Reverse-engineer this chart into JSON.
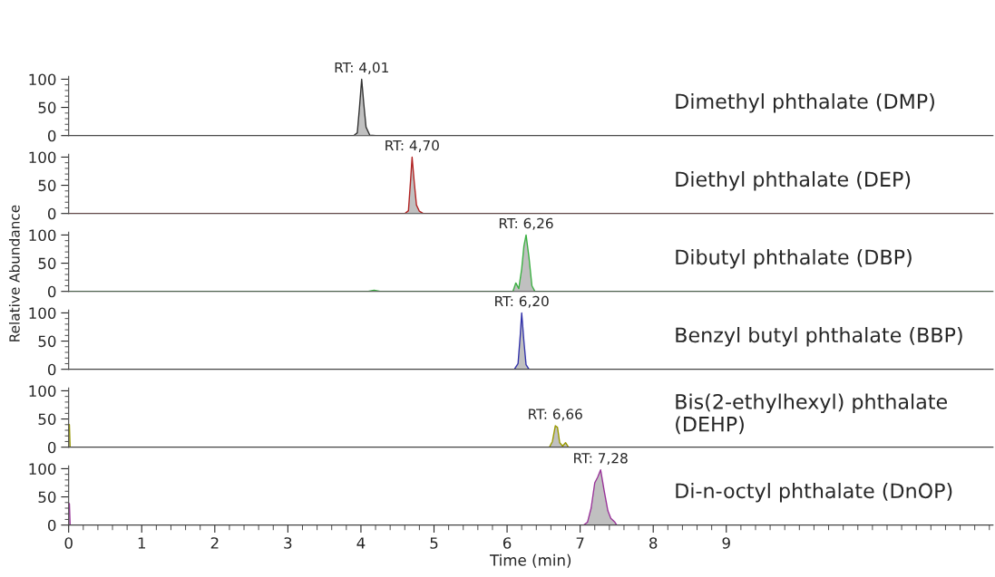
{
  "chart_data": [
    {
      "type": "area",
      "ylim": [
        0,
        105
      ],
      "yticks": [
        0,
        50,
        100
      ],
      "xlim": [
        0,
        12.65
      ],
      "xticks": [
        0,
        1,
        2,
        3,
        4,
        5,
        6,
        7,
        8,
        9
      ],
      "tick_labels": "y",
      "annotations": [
        "Dimethyl phthalate (DMP)",
        {
          "text": "RT: 4,01",
          "x": 4.01,
          "y": 100
        }
      ],
      "series": [
        {
          "color": "#333333",
          "x": [
            0,
            3.9,
            3.95,
            3.98,
            4.01,
            4.04,
            4.07,
            4.12,
            4.2,
            12.65
          ],
          "values": [
            0,
            0,
            5,
            50,
            100,
            55,
            15,
            1,
            0,
            0
          ]
        }
      ]
    },
    {
      "type": "area",
      "ylim": [
        0,
        105
      ],
      "yticks": [
        0,
        50,
        100
      ],
      "xlim": [
        0,
        12.65
      ],
      "xticks": [
        0,
        1,
        2,
        3,
        4,
        5,
        6,
        7,
        8,
        9
      ],
      "tick_labels": "y",
      "annotations": [
        "Diethyl phthalate (DEP)",
        {
          "text": "RT: 4,70",
          "x": 4.7,
          "y": 100
        }
      ],
      "series": [
        {
          "color": "#b22222",
          "x": [
            0,
            4.6,
            4.65,
            4.68,
            4.7,
            4.73,
            4.76,
            4.8,
            4.85,
            12.65
          ],
          "values": [
            0,
            0,
            5,
            60,
            100,
            55,
            15,
            4,
            0,
            0
          ]
        }
      ]
    },
    {
      "type": "area",
      "ylim": [
        0,
        105
      ],
      "yticks": [
        0,
        50,
        100
      ],
      "xlim": [
        0,
        12.65
      ],
      "xticks": [
        0,
        1,
        2,
        3,
        4,
        5,
        6,
        7,
        8,
        9
      ],
      "tick_labels": "y",
      "ylabel": "Relative Abundance",
      "annotations": [
        "Dibutyl phthalate (DBP)",
        {
          "text": "RT: 6,26",
          "x": 6.26,
          "y": 100
        }
      ],
      "series": [
        {
          "color": "#3cb043",
          "x": [
            0,
            4.1,
            4.18,
            4.26,
            6.08,
            6.12,
            6.16,
            6.2,
            6.23,
            6.26,
            6.3,
            6.34,
            6.38,
            12.65
          ],
          "values": [
            0,
            0,
            2,
            0,
            0,
            15,
            5,
            40,
            80,
            100,
            60,
            10,
            0,
            0
          ]
        }
      ]
    },
    {
      "type": "area",
      "ylim": [
        0,
        105
      ],
      "yticks": [
        0,
        50,
        100
      ],
      "xlim": [
        0,
        12.65
      ],
      "xticks": [
        0,
        1,
        2,
        3,
        4,
        5,
        6,
        7,
        8,
        9
      ],
      "tick_labels": "y",
      "annotations": [
        "Benzyl butyl phthalate (BBP)",
        {
          "text": "RT: 6,20",
          "x": 6.2,
          "y": 100
        }
      ],
      "series": [
        {
          "color": "#3333aa",
          "x": [
            0,
            6.1,
            6.15,
            6.18,
            6.2,
            6.23,
            6.26,
            6.3,
            12.65
          ],
          "values": [
            0,
            0,
            10,
            60,
            100,
            50,
            8,
            0,
            0
          ]
        }
      ]
    },
    {
      "type": "area",
      "ylim": [
        0,
        105
      ],
      "yticks": [
        0,
        50,
        100
      ],
      "xlim": [
        0,
        12.65
      ],
      "xticks": [
        0,
        1,
        2,
        3,
        4,
        5,
        6,
        7,
        8,
        9
      ],
      "tick_labels": "y",
      "annotations": [
        "Bis(2-ethylhexyl) phthalate\n(DEHP)",
        {
          "text": "RT: 6,66",
          "x": 6.66,
          "y": 38
        }
      ],
      "series": [
        {
          "color": "#999900",
          "x": [
            0,
            0.01,
            0.02,
            6.58,
            6.62,
            6.66,
            6.69,
            6.72,
            6.76,
            6.8,
            6.84,
            12.65
          ],
          "values": [
            40,
            40,
            0,
            0,
            10,
            38,
            35,
            8,
            2,
            8,
            0,
            0
          ]
        }
      ]
    },
    {
      "type": "area",
      "ylim": [
        0,
        105
      ],
      "yticks": [
        0,
        50,
        100
      ],
      "xlim": [
        0,
        12.65
      ],
      "xticks": [
        0,
        1,
        2,
        3,
        4,
        5,
        6,
        7,
        8,
        9
      ],
      "xlabel": "Time (min)",
      "annotations": [
        "Di-n-octyl phthalate (DnOP)",
        {
          "text": "RT: 7,28",
          "x": 7.28,
          "y": 98
        }
      ],
      "series": [
        {
          "color": "#993399",
          "x": [
            0,
            0.01,
            0.02,
            7.05,
            7.1,
            7.15,
            7.2,
            7.24,
            7.28,
            7.33,
            7.38,
            7.42,
            7.47,
            7.5,
            12.65
          ],
          "values": [
            38,
            38,
            0,
            0,
            5,
            30,
            75,
            85,
            98,
            60,
            25,
            12,
            6,
            0,
            0
          ]
        }
      ]
    }
  ]
}
